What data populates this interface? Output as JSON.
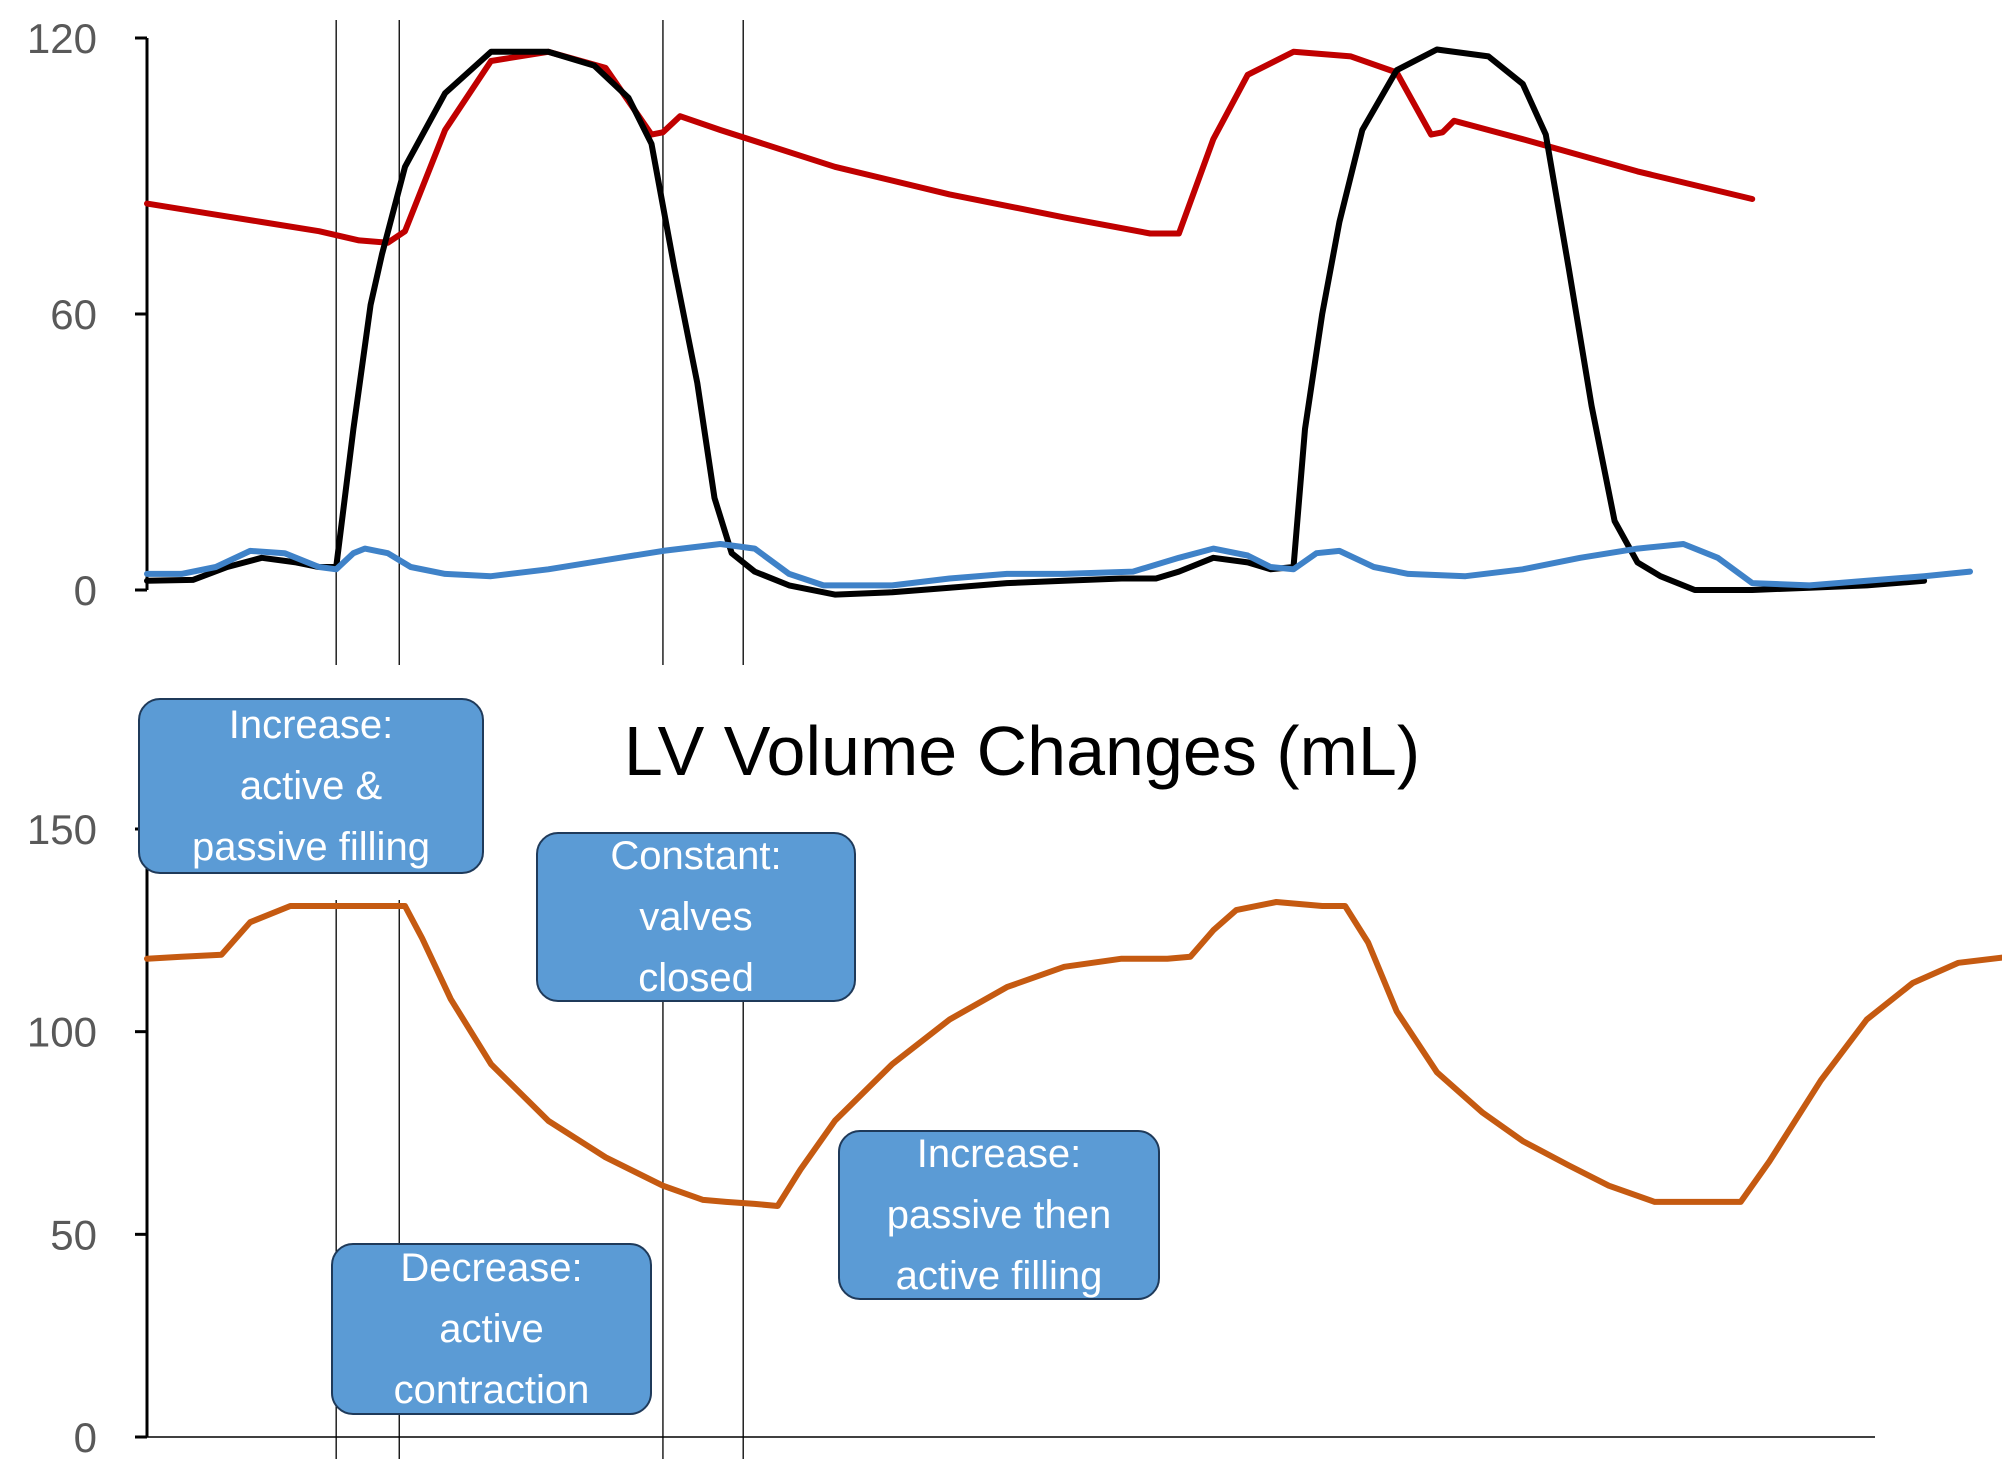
{
  "colors": {
    "aortic_pressure": "#c00000",
    "lv_pressure": "#000000",
    "atrial_pressure": "#3f82c8",
    "lv_volume": "#c55a11",
    "callout_fill": "#5b9bd5",
    "callout_border": "#1f3a5a",
    "axis": "#000000",
    "tick_label": "#595959"
  },
  "chart_data": [
    {
      "type": "line",
      "title": "",
      "xlabel": "",
      "ylabel": "",
      "ylim": [
        0,
        120
      ],
      "y_ticks": [
        "0",
        "60",
        "120"
      ],
      "grid": false,
      "series": [
        {
          "key": "aortic",
          "color": "#c00000",
          "points": [
            [
              0,
              84
            ],
            [
              10,
              82
            ],
            [
              20,
              80
            ],
            [
              30,
              78
            ],
            [
              37,
              76
            ],
            [
              42,
              75.5
            ],
            [
              45,
              78
            ],
            [
              52,
              100
            ],
            [
              60,
              115
            ],
            [
              70,
              117
            ],
            [
              80,
              113.5
            ],
            [
              88,
              99
            ],
            [
              90,
              99.5
            ],
            [
              93,
              103
            ],
            [
              100,
              100
            ],
            [
              120,
              92
            ],
            [
              140,
              86
            ],
            [
              160,
              81
            ],
            [
              175,
              77.5
            ],
            [
              180,
              77.5
            ],
            [
              186,
              98
            ],
            [
              192,
              112
            ],
            [
              200,
              117
            ],
            [
              210,
              116
            ],
            [
              218,
              112.5
            ],
            [
              224,
              99
            ],
            [
              226,
              99.5
            ],
            [
              228,
              102
            ],
            [
              240,
              98
            ],
            [
              260,
              91
            ],
            [
              280,
              85
            ]
          ]
        },
        {
          "key": "lv",
          "color": "#000000",
          "points": [
            [
              0,
              2
            ],
            [
              8,
              2.2
            ],
            [
              14,
              5
            ],
            [
              20,
              7
            ],
            [
              26,
              6
            ],
            [
              30,
              5
            ],
            [
              33,
              5
            ],
            [
              36,
              35
            ],
            [
              39,
              62
            ],
            [
              41,
              73
            ],
            [
              45,
              92
            ],
            [
              52,
              108
            ],
            [
              60,
              117
            ],
            [
              70,
              117
            ],
            [
              78,
              114
            ],
            [
              84,
              107
            ],
            [
              88,
              97
            ],
            [
              92,
              70
            ],
            [
              96,
              45
            ],
            [
              99,
              20
            ],
            [
              102,
              8
            ],
            [
              106,
              4
            ],
            [
              112,
              1
            ],
            [
              120,
              -1
            ],
            [
              130,
              -0.5
            ],
            [
              140,
              0.5
            ],
            [
              150,
              1.5
            ],
            [
              160,
              2
            ],
            [
              170,
              2.5
            ],
            [
              176,
              2.5
            ],
            [
              180,
              4
            ],
            [
              186,
              7
            ],
            [
              192,
              6
            ],
            [
              196,
              4.5
            ],
            [
              200,
              5
            ],
            [
              202,
              35
            ],
            [
              205,
              60
            ],
            [
              208,
              80
            ],
            [
              212,
              100
            ],
            [
              218,
              113
            ],
            [
              225,
              117.5
            ],
            [
              234,
              116
            ],
            [
              240,
              110
            ],
            [
              244,
              99
            ],
            [
              248,
              70
            ],
            [
              252,
              40
            ],
            [
              256,
              15
            ],
            [
              260,
              6
            ],
            [
              264,
              3
            ],
            [
              270,
              0
            ],
            [
              280,
              0
            ],
            [
              290,
              0.5
            ],
            [
              300,
              1
            ],
            [
              310,
              2
            ]
          ]
        },
        {
          "key": "atrial",
          "color": "#3f82c8",
          "points": [
            [
              0,
              3.5
            ],
            [
              6,
              3.5
            ],
            [
              12,
              5
            ],
            [
              18,
              8.5
            ],
            [
              24,
              8
            ],
            [
              30,
              5
            ],
            [
              33,
              4.5
            ],
            [
              36,
              8
            ],
            [
              38,
              9
            ],
            [
              42,
              8
            ],
            [
              46,
              5
            ],
            [
              52,
              3.5
            ],
            [
              60,
              3
            ],
            [
              70,
              4.5
            ],
            [
              80,
              6.5
            ],
            [
              90,
              8.5
            ],
            [
              100,
              10
            ],
            [
              106,
              9
            ],
            [
              112,
              3.5
            ],
            [
              118,
              1
            ],
            [
              130,
              1
            ],
            [
              140,
              2.5
            ],
            [
              150,
              3.5
            ],
            [
              160,
              3.5
            ],
            [
              172,
              4
            ],
            [
              180,
              7
            ],
            [
              186,
              9
            ],
            [
              192,
              7.5
            ],
            [
              196,
              5
            ],
            [
              200,
              4.5
            ],
            [
              204,
              8
            ],
            [
              208,
              8.5
            ],
            [
              214,
              5
            ],
            [
              220,
              3.5
            ],
            [
              230,
              3
            ],
            [
              240,
              4.5
            ],
            [
              250,
              7
            ],
            [
              260,
              9
            ],
            [
              268,
              10
            ],
            [
              274,
              7
            ],
            [
              280,
              1.5
            ],
            [
              290,
              1
            ],
            [
              300,
              2
            ],
            [
              310,
              3
            ],
            [
              318,
              4
            ]
          ]
        }
      ]
    },
    {
      "type": "line",
      "title": "LV Volume Changes (mL)",
      "xlabel": "",
      "ylabel": "",
      "ylim": [
        0,
        150
      ],
      "y_ticks": [
        "0",
        "50",
        "100",
        "150"
      ],
      "grid": false,
      "series": [
        {
          "key": "volume",
          "color": "#c55a11",
          "points": [
            [
              0,
              118
            ],
            [
              6,
              118.5
            ],
            [
              13,
              119
            ],
            [
              18,
              127
            ],
            [
              25,
              131
            ],
            [
              36,
              131
            ],
            [
              45,
              131
            ],
            [
              48,
              123
            ],
            [
              53,
              108
            ],
            [
              60,
              92
            ],
            [
              70,
              78
            ],
            [
              80,
              69
            ],
            [
              90,
              62
            ],
            [
              97,
              58.5
            ],
            [
              101,
              58
            ],
            [
              106,
              57.5
            ],
            [
              110,
              57
            ],
            [
              114,
              66
            ],
            [
              120,
              78
            ],
            [
              130,
              92
            ],
            [
              140,
              103
            ],
            [
              150,
              111
            ],
            [
              160,
              116
            ],
            [
              170,
              118
            ],
            [
              178,
              118
            ],
            [
              182,
              118.5
            ],
            [
              186,
              125
            ],
            [
              190,
              130
            ],
            [
              197,
              132
            ],
            [
              205,
              131
            ],
            [
              209,
              131
            ],
            [
              213,
              122
            ],
            [
              218,
              105
            ],
            [
              225,
              90
            ],
            [
              233,
              80
            ],
            [
              240,
              73
            ],
            [
              248,
              67
            ],
            [
              255,
              62
            ],
            [
              263,
              58
            ],
            [
              268,
              58
            ],
            [
              274,
              58
            ],
            [
              278,
              58
            ],
            [
              283,
              68
            ],
            [
              292,
              88
            ],
            [
              300,
              103
            ],
            [
              308,
              112
            ],
            [
              316,
              117
            ],
            [
              325,
              118.5
            ]
          ]
        }
      ]
    }
  ],
  "callouts": [
    {
      "key": "c1",
      "lines": [
        "Increase:",
        "active &",
        "passive filling"
      ]
    },
    {
      "key": "c2",
      "lines": [
        "Constant:",
        "valves",
        "closed"
      ]
    },
    {
      "key": "c3",
      "lines": [
        "Increase:",
        "passive then",
        "active filling"
      ]
    },
    {
      "key": "c4",
      "lines": [
        "Decrease:",
        "active",
        "contraction"
      ]
    }
  ],
  "phase_markers": [
    33,
    44,
    90,
    104
  ]
}
